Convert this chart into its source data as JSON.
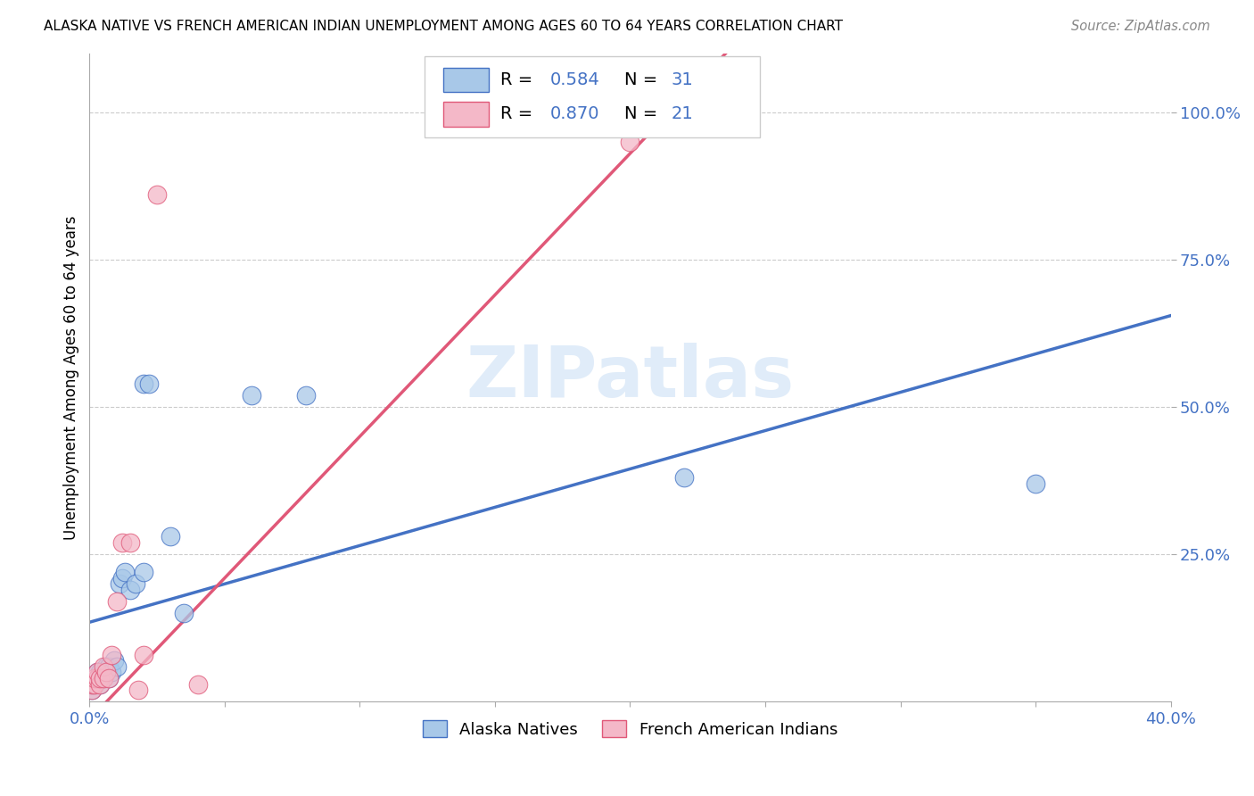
{
  "title": "ALASKA NATIVE VS FRENCH AMERICAN INDIAN UNEMPLOYMENT AMONG AGES 60 TO 64 YEARS CORRELATION CHART",
  "source": "Source: ZipAtlas.com",
  "ylabel": "Unemployment Among Ages 60 to 64 years",
  "xlim": [
    0.0,
    0.4
  ],
  "ylim": [
    0.0,
    1.1
  ],
  "xtick_positions": [
    0.0,
    0.4
  ],
  "xtick_labels": [
    "0.0%",
    "40.0%"
  ],
  "ytick_positions": [
    0.25,
    0.5,
    0.75,
    1.0
  ],
  "ytick_labels": [
    "25.0%",
    "50.0%",
    "75.0%",
    "100.0%"
  ],
  "watermark": "ZIPatlas",
  "blue_color": "#a8c8e8",
  "pink_color": "#f4b8c8",
  "blue_line_color": "#4472c4",
  "pink_line_color": "#e05878",
  "blue_intercept": 0.135,
  "blue_slope": 1.3,
  "pink_intercept": -0.03,
  "pink_slope": 4.8,
  "alaska_x": [
    0.001,
    0.001,
    0.002,
    0.002,
    0.003,
    0.003,
    0.004,
    0.004,
    0.005,
    0.005,
    0.006,
    0.006,
    0.007,
    0.007,
    0.008,
    0.009,
    0.01,
    0.011,
    0.012,
    0.013,
    0.015,
    0.017,
    0.02,
    0.02,
    0.022,
    0.03,
    0.035,
    0.06,
    0.08,
    0.22,
    0.35
  ],
  "alaska_y": [
    0.02,
    0.03,
    0.03,
    0.04,
    0.04,
    0.05,
    0.03,
    0.05,
    0.04,
    0.05,
    0.05,
    0.06,
    0.04,
    0.06,
    0.05,
    0.07,
    0.06,
    0.2,
    0.21,
    0.22,
    0.19,
    0.2,
    0.22,
    0.54,
    0.54,
    0.28,
    0.15,
    0.52,
    0.52,
    0.38,
    0.37
  ],
  "french_x": [
    0.001,
    0.001,
    0.002,
    0.002,
    0.003,
    0.003,
    0.004,
    0.004,
    0.005,
    0.005,
    0.006,
    0.007,
    0.008,
    0.01,
    0.012,
    0.015,
    0.018,
    0.02,
    0.025,
    0.04,
    0.2
  ],
  "french_y": [
    0.02,
    0.03,
    0.03,
    0.04,
    0.04,
    0.05,
    0.03,
    0.04,
    0.04,
    0.06,
    0.05,
    0.04,
    0.08,
    0.17,
    0.27,
    0.27,
    0.02,
    0.08,
    0.86,
    0.03,
    0.95
  ]
}
